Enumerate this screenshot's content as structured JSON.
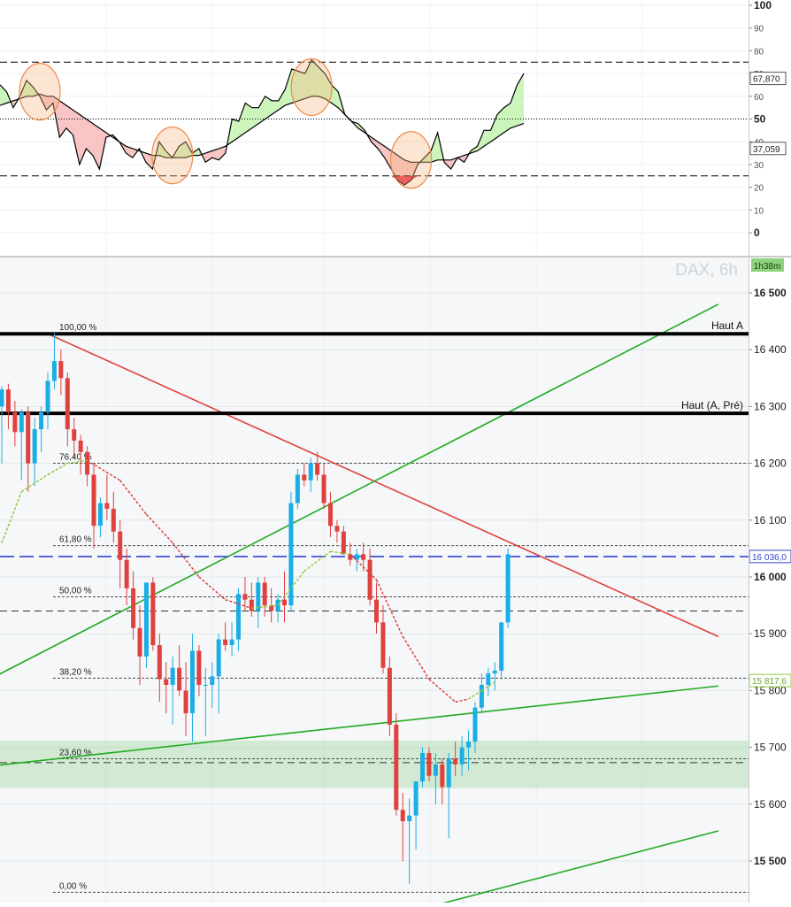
{
  "instrument": {
    "label": "DAX, 6h",
    "timer": "1h38m"
  },
  "chart_data": [
    {
      "type": "line",
      "panel": "oscillator",
      "ylim": [
        -10,
        100
      ],
      "yticks": [
        100,
        90,
        80,
        70,
        60,
        50,
        40,
        30,
        20,
        10,
        0
      ],
      "levels": {
        "upper": 75,
        "mid": 50,
        "lower": 25
      },
      "price_badges": [
        "67,870",
        "37,059"
      ],
      "badge_values": [
        67.87,
        37.059
      ],
      "fill_colors": {
        "above": "#ccf5bb",
        "below": "#f8c4c4",
        "extreme": "#e8304a"
      },
      "series": [
        {
          "role": "oscillator",
          "color": "#000000",
          "values": [
            65,
            62,
            55,
            60,
            67,
            64,
            60,
            54,
            57,
            42,
            46,
            43,
            30,
            37,
            34,
            28,
            42,
            43,
            40,
            35,
            33,
            37,
            31,
            28,
            40,
            36,
            33,
            38,
            40,
            35,
            37,
            31,
            33,
            32,
            35,
            50,
            49,
            57,
            55,
            55,
            60,
            58,
            58,
            63,
            72,
            71,
            70,
            76,
            73,
            70,
            65,
            62,
            52,
            49,
            48,
            45,
            40,
            37,
            33,
            28,
            23,
            21,
            23,
            30,
            33,
            36,
            44,
            31,
            28,
            33,
            31,
            36,
            38,
            45,
            45,
            52,
            55,
            57,
            65,
            70
          ]
        },
        {
          "role": "signal",
          "color": "#000000",
          "values": [
            56,
            57,
            58,
            59,
            60,
            60,
            61,
            60,
            60,
            58,
            56,
            54,
            52,
            50,
            48,
            46,
            44,
            42,
            40,
            38,
            37,
            36,
            35,
            34,
            34,
            33,
            33,
            33,
            33,
            34,
            34,
            35,
            36,
            37,
            38,
            40,
            42,
            44,
            46,
            48,
            50,
            52,
            54,
            56,
            57,
            58,
            59,
            60,
            60,
            59,
            57,
            55,
            52,
            49,
            46,
            44,
            42,
            40,
            38,
            36,
            34,
            32,
            31,
            31,
            31,
            31,
            32,
            32,
            32,
            33,
            34,
            35,
            36,
            38,
            40,
            42,
            44,
            46,
            47,
            48
          ]
        }
      ],
      "highlight_marks": [
        {
          "bar": 6,
          "value": 62
        },
        {
          "bar": 26,
          "value": 34
        },
        {
          "bar": 47,
          "value": 64
        },
        {
          "bar": 62,
          "value": 32
        }
      ]
    },
    {
      "type": "candlestick",
      "panel": "price",
      "ylim": [
        15440,
        16580
      ],
      "yticks": [
        16500,
        16400,
        16300,
        16200,
        16100,
        16000,
        15900,
        15800,
        15700,
        15600,
        15500
      ],
      "ytick_labels": [
        "16 500",
        "16 400",
        "16 300",
        "16 200",
        "16 100",
        "16 000",
        "15 900",
        "15 800",
        "15 700",
        "15 600",
        "15 500"
      ],
      "bull_color": "#1aaee5",
      "bear_color": "#e0413f",
      "candles": [
        [
          16300,
          16335,
          16200,
          16330
        ],
        [
          16330,
          16340,
          16260,
          16290
        ],
        [
          16290,
          16310,
          16230,
          16255
        ],
        [
          16255,
          16295,
          16170,
          16290
        ],
        [
          16290,
          16300,
          16150,
          16200
        ],
        [
          16200,
          16280,
          16160,
          16260
        ],
        [
          16260,
          16300,
          16220,
          16290
        ],
        [
          16290,
          16360,
          16260,
          16345
        ],
        [
          16345,
          16430,
          16330,
          16380
        ],
        [
          16380,
          16400,
          16320,
          16350
        ],
        [
          16350,
          16360,
          16230,
          16260
        ],
        [
          16260,
          16280,
          16210,
          16240
        ],
        [
          16240,
          16250,
          16180,
          16220
        ],
        [
          16220,
          16230,
          16160,
          16180
        ],
        [
          16180,
          16200,
          16050,
          16090
        ],
        [
          16090,
          16140,
          16070,
          16130
        ],
        [
          16130,
          16180,
          16100,
          16120
        ],
        [
          16120,
          16150,
          16060,
          16080
        ],
        [
          16080,
          16100,
          15980,
          16030
        ],
        [
          16030,
          16050,
          15950,
          15980
        ],
        [
          15980,
          16010,
          15890,
          15910
        ],
        [
          15910,
          15950,
          15810,
          15860
        ],
        [
          15860,
          15990,
          15840,
          15990
        ],
        [
          15990,
          16000,
          15870,
          15880
        ],
        [
          15880,
          15900,
          15780,
          15820
        ],
        [
          15820,
          15850,
          15760,
          15810
        ],
        [
          15810,
          15860,
          15740,
          15840
        ],
        [
          15840,
          15880,
          15790,
          15800
        ],
        [
          15800,
          15850,
          15720,
          15760
        ],
        [
          15760,
          15900,
          15710,
          15870
        ],
        [
          15870,
          15880,
          15790,
          15810
        ],
        [
          15810,
          15840,
          15720,
          15810
        ],
        [
          15810,
          15850,
          15770,
          15825
        ],
        [
          15825,
          15900,
          15760,
          15890
        ],
        [
          15890,
          15920,
          15870,
          15880
        ],
        [
          15880,
          15920,
          15860,
          15890
        ],
        [
          15890,
          15980,
          15870,
          15970
        ],
        [
          15970,
          16000,
          15940,
          15960
        ],
        [
          15960,
          15990,
          15930,
          15940
        ],
        [
          15940,
          16000,
          15910,
          15990
        ],
        [
          15990,
          16000,
          15930,
          15950
        ],
        [
          15950,
          15980,
          15920,
          15940
        ],
        [
          15940,
          15970,
          15920,
          15960
        ],
        [
          15960,
          16010,
          15920,
          15950
        ],
        [
          15950,
          16150,
          15940,
          16130
        ],
        [
          16130,
          16190,
          16120,
          16180
        ],
        [
          16180,
          16200,
          16160,
          16170
        ],
        [
          16170,
          16210,
          16150,
          16200
        ],
        [
          16200,
          16220,
          16170,
          16180
        ],
        [
          16180,
          16200,
          16120,
          16130
        ],
        [
          16130,
          16150,
          16070,
          16090
        ],
        [
          16090,
          16100,
          16060,
          16080
        ],
        [
          16080,
          16090,
          16040,
          16040
        ],
        [
          16040,
          16060,
          16020,
          16030
        ],
        [
          16030,
          16050,
          16010,
          16040
        ],
        [
          16040,
          16060,
          16010,
          16030
        ],
        [
          16030,
          16050,
          15950,
          15960
        ],
        [
          15960,
          15990,
          15900,
          15920
        ],
        [
          15920,
          15950,
          15830,
          15840
        ],
        [
          15840,
          15860,
          15720,
          15740
        ],
        [
          15740,
          15760,
          15580,
          15590
        ],
        [
          15590,
          15620,
          15500,
          15570
        ],
        [
          15570,
          15610,
          15460,
          15580
        ],
        [
          15580,
          15640,
          15520,
          15640
        ],
        [
          15640,
          15700,
          15630,
          15690
        ],
        [
          15690,
          15700,
          15640,
          15650
        ],
        [
          15650,
          15690,
          15600,
          15670
        ],
        [
          15670,
          15680,
          15600,
          15630
        ],
        [
          15630,
          15690,
          15540,
          15680
        ],
        [
          15680,
          15710,
          15650,
          15670
        ],
        [
          15670,
          15720,
          15650,
          15700
        ],
        [
          15700,
          15730,
          15660,
          15710
        ],
        [
          15710,
          15780,
          15690,
          15770
        ],
        [
          15770,
          15830,
          15760,
          15810
        ],
        [
          15810,
          15840,
          15790,
          15830
        ],
        [
          15830,
          15850,
          15800,
          15835
        ],
        [
          15835,
          15920,
          15820,
          15920
        ],
        [
          15920,
          16050,
          15910,
          16040
        ]
      ],
      "moving_average": {
        "style": "dashed",
        "points": [
          {
            "bar": 0,
            "value": 16060,
            "color": "#8ccc3c"
          },
          {
            "bar": 3,
            "value": 16150,
            "color": "#8ccc3c"
          },
          {
            "bar": 7,
            "value": 16180,
            "color": "#8ccc3c"
          },
          {
            "bar": 10,
            "value": 16200,
            "color": "#8ccc3c"
          },
          {
            "bar": 13,
            "value": 16205,
            "color": "#e0413f"
          },
          {
            "bar": 18,
            "value": 16170,
            "color": "#e0413f"
          },
          {
            "bar": 22,
            "value": 16110,
            "color": "#e0413f"
          },
          {
            "bar": 26,
            "value": 16060,
            "color": "#e0413f"
          },
          {
            "bar": 30,
            "value": 16000,
            "color": "#e0413f"
          },
          {
            "bar": 34,
            "value": 15960,
            "color": "#e0413f"
          },
          {
            "bar": 38,
            "value": 15945,
            "color": "#8ccc3c"
          },
          {
            "bar": 42,
            "value": 15950,
            "color": "#8ccc3c"
          },
          {
            "bar": 46,
            "value": 16010,
            "color": "#8ccc3c"
          },
          {
            "bar": 50,
            "value": 16045,
            "color": "#8ccc3c"
          },
          {
            "bar": 53,
            "value": 16040,
            "color": "#e0413f"
          },
          {
            "bar": 57,
            "value": 15995,
            "color": "#e0413f"
          },
          {
            "bar": 61,
            "value": 15895,
            "color": "#e0413f"
          },
          {
            "bar": 65,
            "value": 15820,
            "color": "#e0413f"
          },
          {
            "bar": 69,
            "value": 15780,
            "color": "#e0413f"
          },
          {
            "bar": 71,
            "value": 15785,
            "color": "#8ccc3c"
          },
          {
            "bar": 73,
            "value": 15800,
            "color": "#8ccc3c"
          },
          {
            "bar": 75,
            "value": 15815,
            "color": "#8ccc3c"
          }
        ]
      },
      "fibonacci": [
        {
          "label": "100,00 %",
          "value": 16428
        },
        {
          "label": "76,40 %",
          "value": 16200
        },
        {
          "label": "61,80 %",
          "value": 16055
        },
        {
          "label": "50,00 %",
          "value": 15965
        },
        {
          "label": "38,20 %",
          "value": 15822
        },
        {
          "label": "23,60 %",
          "value": 15680
        },
        {
          "label": "0,00 %",
          "value": 15445
        }
      ],
      "horizontal_lines": [
        {
          "label": "Haut A",
          "value": 16428
        },
        {
          "label": "Haut (A, Pré)",
          "value": 16288
        }
      ],
      "current_price": {
        "label": "16 036,0",
        "value": 16036
      },
      "ma_value": {
        "label": "15 817,6",
        "value": 15817.6
      },
      "support_zone": [
        15628,
        15712
      ],
      "extra_dashed_levels": [
        15940,
        15673
      ],
      "trendlines": [
        {
          "color": "#e0413f",
          "from": {
            "bar": 7,
            "value": 16428
          },
          "to": {
            "bar": 109,
            "value": 15895
          }
        },
        {
          "color": "#22aa22",
          "from": {
            "bar": -1,
            "value": 15825
          },
          "to": {
            "bar": 109,
            "value": 16480
          }
        },
        {
          "color": "#22aa22",
          "from": {
            "bar": -1,
            "value": 15668
          },
          "to": {
            "bar": 109,
            "value": 15808
          }
        },
        {
          "color": "#22aa22",
          "from": {
            "bar": 62,
            "value": 15410
          },
          "to": {
            "bar": 109,
            "value": 15553
          }
        }
      ]
    }
  ]
}
